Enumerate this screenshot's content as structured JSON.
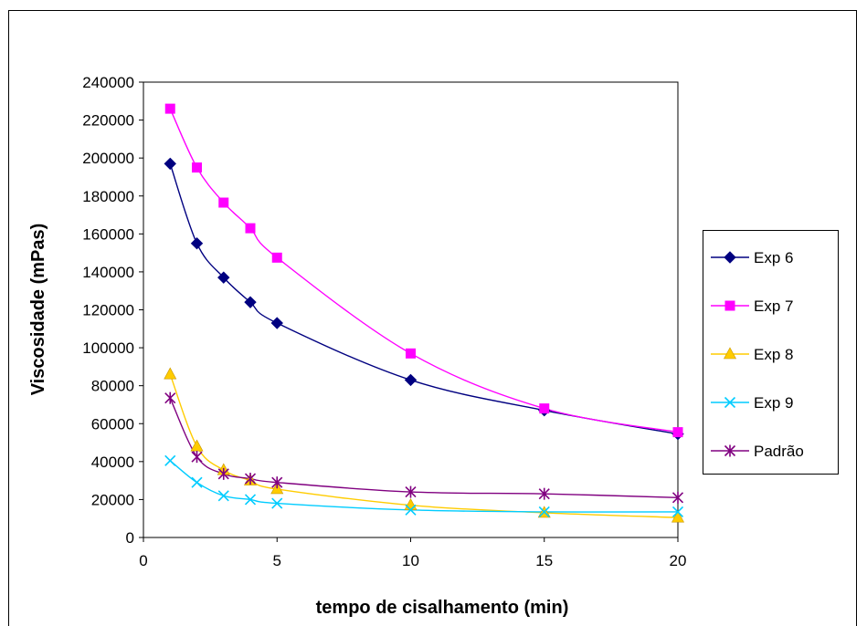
{
  "chart_data": {
    "type": "line",
    "xlabel": "tempo de cisalhamento (min)",
    "ylabel": "Viscosidade (mPas)",
    "xlim": [
      0,
      20
    ],
    "ylim": [
      0,
      240000
    ],
    "x_ticks": [
      "0",
      "5",
      "10",
      "15",
      "20"
    ],
    "y_ticks": [
      "0",
      "20000",
      "40000",
      "60000",
      "80000",
      "100000",
      "120000",
      "140000",
      "160000",
      "180000",
      "200000",
      "220000",
      "240000"
    ],
    "grid": false,
    "legend_position": "right",
    "x": [
      1,
      2,
      3,
      4,
      5,
      10,
      15,
      20
    ],
    "series": [
      {
        "name": "Exp 6",
        "color": "#000080",
        "marker": "diamond",
        "values": [
          197000,
          155000,
          137000,
          124000,
          113000,
          83000,
          67000,
          54500
        ]
      },
      {
        "name": "Exp 7",
        "color": "#ff00ff",
        "marker": "square",
        "values": [
          226000,
          195000,
          176500,
          163000,
          147500,
          97000,
          68000,
          55500
        ]
      },
      {
        "name": "Exp 8",
        "color": "#ffcc00",
        "marker": "triangle",
        "values": [
          86000,
          48000,
          35500,
          30000,
          25500,
          17000,
          13000,
          10500
        ]
      },
      {
        "name": "Exp 9",
        "color": "#00ccff",
        "marker": "x",
        "values": [
          40500,
          29000,
          22000,
          20000,
          18000,
          14500,
          13500,
          13500
        ]
      },
      {
        "name": "Padrão",
        "color": "#800080",
        "marker": "star",
        "values": [
          73500,
          42500,
          33500,
          31000,
          29000,
          24000,
          23000,
          21000
        ]
      }
    ]
  }
}
